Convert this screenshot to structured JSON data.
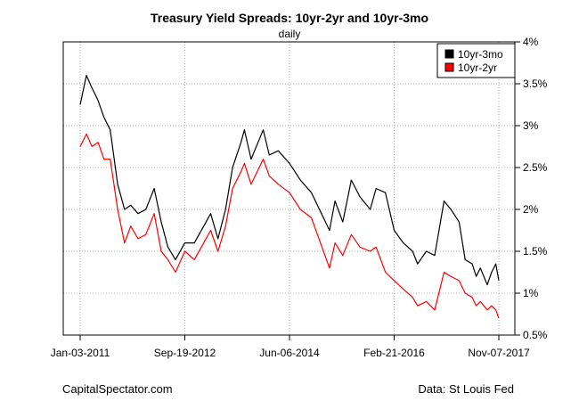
{
  "chart_data": {
    "type": "line",
    "title": "Treasury Yield Spreads: 10yr-2yr and 10yr-3mo",
    "subtitle": "daily",
    "xlabel": "",
    "ylabel": "",
    "x_tick_labels": [
      "Jan-03-2011",
      "Sep-19-2012",
      "Jun-06-2014",
      "Feb-21-2016",
      "Nov-07-2017"
    ],
    "y_tick_labels": [
      "4%",
      "3.5%",
      "3%",
      "2.5%",
      "2%",
      "1.5%",
      "1%",
      "0.5%"
    ],
    "y_ticks": [
      4.0,
      3.5,
      3.0,
      2.5,
      2.0,
      1.5,
      1.0,
      0.5
    ],
    "ylim": [
      0.5,
      4.0
    ],
    "xlim": [
      "2011-01-03",
      "2017-11-07"
    ],
    "grid": true,
    "legend_position": "top-right",
    "series": [
      {
        "name": "10yr-3mo",
        "color": "#000000",
        "points": [
          [
            "2011-01-03",
            3.25
          ],
          [
            "2011-02-09",
            3.6
          ],
          [
            "2011-03-15",
            3.45
          ],
          [
            "2011-04-20",
            3.3
          ],
          [
            "2011-05-25",
            3.1
          ],
          [
            "2011-07-01",
            2.95
          ],
          [
            "2011-08-15",
            2.3
          ],
          [
            "2011-09-25",
            2.0
          ],
          [
            "2011-11-01",
            2.05
          ],
          [
            "2011-12-15",
            1.95
          ],
          [
            "2012-01-30",
            2.0
          ],
          [
            "2012-03-20",
            2.25
          ],
          [
            "2012-05-01",
            1.85
          ],
          [
            "2012-06-10",
            1.55
          ],
          [
            "2012-07-25",
            1.4
          ],
          [
            "2012-09-19",
            1.6
          ],
          [
            "2012-11-15",
            1.6
          ],
          [
            "2013-01-10",
            1.8
          ],
          [
            "2013-02-20",
            1.95
          ],
          [
            "2013-04-05",
            1.65
          ],
          [
            "2013-05-20",
            2.0
          ],
          [
            "2013-07-01",
            2.5
          ],
          [
            "2013-08-20",
            2.8
          ],
          [
            "2013-09-10",
            2.95
          ],
          [
            "2013-10-20",
            2.6
          ],
          [
            "2013-12-31",
            2.95
          ],
          [
            "2014-02-05",
            2.65
          ],
          [
            "2014-03-31",
            2.7
          ],
          [
            "2014-06-06",
            2.55
          ],
          [
            "2014-08-10",
            2.35
          ],
          [
            "2014-10-15",
            2.2
          ],
          [
            "2015-01-31",
            1.75
          ],
          [
            "2015-03-05",
            2.1
          ],
          [
            "2015-04-20",
            1.85
          ],
          [
            "2015-06-10",
            2.35
          ],
          [
            "2015-08-01",
            2.15
          ],
          [
            "2015-10-01",
            2.0
          ],
          [
            "2015-11-05",
            2.25
          ],
          [
            "2015-12-31",
            2.2
          ],
          [
            "2016-02-21",
            1.75
          ],
          [
            "2016-04-15",
            1.6
          ],
          [
            "2016-06-10",
            1.5
          ],
          [
            "2016-07-10",
            1.35
          ],
          [
            "2016-08-31",
            1.5
          ],
          [
            "2016-10-20",
            1.45
          ],
          [
            "2016-12-15",
            2.1
          ],
          [
            "2017-01-25",
            2.0
          ],
          [
            "2017-03-15",
            1.85
          ],
          [
            "2017-04-20",
            1.4
          ],
          [
            "2017-06-01",
            1.35
          ],
          [
            "2017-06-25",
            1.2
          ],
          [
            "2017-07-20",
            1.3
          ],
          [
            "2017-08-30",
            1.1
          ],
          [
            "2017-09-25",
            1.25
          ],
          [
            "2017-10-20",
            1.35
          ],
          [
            "2017-11-07",
            1.15
          ]
        ]
      },
      {
        "name": "10yr-2yr",
        "color": "#ff0000",
        "points": [
          [
            "2011-01-03",
            2.75
          ],
          [
            "2011-02-09",
            2.9
          ],
          [
            "2011-03-15",
            2.75
          ],
          [
            "2011-04-20",
            2.8
          ],
          [
            "2011-05-25",
            2.6
          ],
          [
            "2011-07-01",
            2.6
          ],
          [
            "2011-08-15",
            2.0
          ],
          [
            "2011-09-25",
            1.6
          ],
          [
            "2011-11-01",
            1.8
          ],
          [
            "2011-12-15",
            1.65
          ],
          [
            "2012-01-30",
            1.7
          ],
          [
            "2012-03-20",
            1.95
          ],
          [
            "2012-05-01",
            1.5
          ],
          [
            "2012-06-10",
            1.4
          ],
          [
            "2012-07-25",
            1.25
          ],
          [
            "2012-09-19",
            1.5
          ],
          [
            "2012-11-15",
            1.4
          ],
          [
            "2013-01-10",
            1.6
          ],
          [
            "2013-02-20",
            1.75
          ],
          [
            "2013-04-05",
            1.5
          ],
          [
            "2013-05-20",
            1.8
          ],
          [
            "2013-07-01",
            2.25
          ],
          [
            "2013-08-20",
            2.45
          ],
          [
            "2013-09-10",
            2.55
          ],
          [
            "2013-10-20",
            2.3
          ],
          [
            "2013-12-31",
            2.6
          ],
          [
            "2014-02-05",
            2.4
          ],
          [
            "2014-03-31",
            2.3
          ],
          [
            "2014-06-06",
            2.2
          ],
          [
            "2014-08-10",
            2.0
          ],
          [
            "2014-10-15",
            1.9
          ],
          [
            "2015-01-31",
            1.3
          ],
          [
            "2015-03-05",
            1.6
          ],
          [
            "2015-04-20",
            1.45
          ],
          [
            "2015-06-10",
            1.7
          ],
          [
            "2015-08-01",
            1.55
          ],
          [
            "2015-10-01",
            1.5
          ],
          [
            "2015-11-05",
            1.55
          ],
          [
            "2015-12-31",
            1.25
          ],
          [
            "2016-02-21",
            1.15
          ],
          [
            "2016-04-15",
            1.05
          ],
          [
            "2016-06-10",
            0.95
          ],
          [
            "2016-07-10",
            0.85
          ],
          [
            "2016-08-31",
            0.9
          ],
          [
            "2016-10-20",
            0.8
          ],
          [
            "2016-12-15",
            1.25
          ],
          [
            "2017-01-25",
            1.2
          ],
          [
            "2017-03-15",
            1.15
          ],
          [
            "2017-04-20",
            1.0
          ],
          [
            "2017-06-01",
            0.95
          ],
          [
            "2017-06-25",
            0.85
          ],
          [
            "2017-07-20",
            0.9
          ],
          [
            "2017-08-30",
            0.8
          ],
          [
            "2017-09-25",
            0.85
          ],
          [
            "2017-10-20",
            0.8
          ],
          [
            "2017-11-07",
            0.7
          ]
        ]
      }
    ]
  },
  "footer": {
    "left": "CapitalSpectator.com",
    "right": "Data: St Louis Fed"
  }
}
